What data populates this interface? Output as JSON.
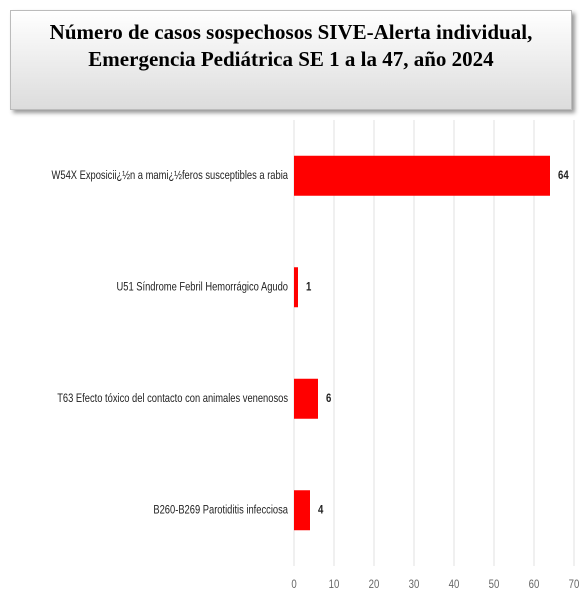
{
  "chart_data": {
    "type": "barh",
    "title": "Número de casos sospechosos SIVE-Alerta individual, Emergencia Pediátrica SE 1 a la 47, año 2024",
    "categories": [
      "W54X Exposicii¿½n a mami¿½feros susceptibles a rabia",
      "U51 Síndrome Febril Hemorrágico Agudo",
      "T63 Efecto tóxico del contacto con animales venenosos",
      "B260-B269 Parotiditis infecciosa"
    ],
    "values": [
      64,
      1,
      6,
      4
    ],
    "color": "#ff0000",
    "xlim": [
      0,
      70
    ],
    "xticks": [
      0,
      10,
      20,
      30,
      40,
      50,
      60,
      70
    ],
    "grid": true
  }
}
